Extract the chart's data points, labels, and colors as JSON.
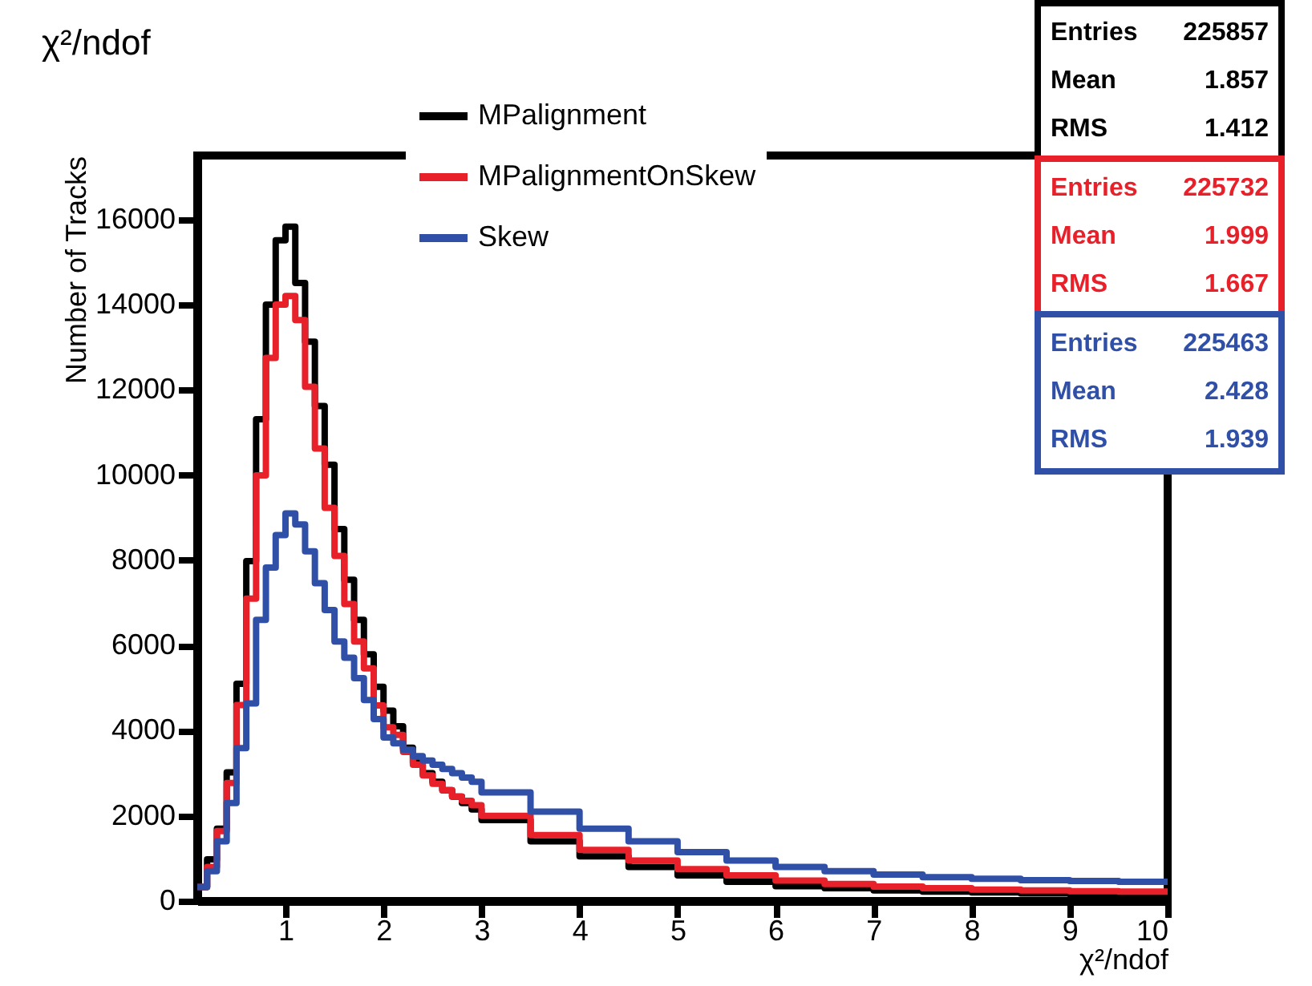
{
  "chart_data": {
    "type": "histogram",
    "title": "χ²/ndof",
    "xlabel": "χ²/ndof",
    "ylabel": "Number of Tracks",
    "bins": [
      0.1,
      0.2,
      0.3,
      0.4,
      0.5,
      0.6,
      0.7,
      0.8,
      0.9,
      1.0,
      1.1,
      1.2,
      1.3,
      1.4,
      1.5,
      1.6,
      1.7,
      1.8,
      1.9,
      2.0,
      2.1,
      2.2,
      2.3,
      2.4,
      2.5,
      2.6,
      2.7,
      2.8,
      2.9,
      3.0,
      3.5,
      4.0,
      4.5,
      5.0,
      5.5,
      6.0,
      6.5,
      7.0,
      7.5,
      8.0,
      8.5,
      9.0,
      9.5,
      10.0
    ],
    "series": [
      {
        "name": "MPalignment",
        "color": "#000000",
        "values": [
          330,
          980,
          1700,
          3020,
          5100,
          7980,
          11310,
          14000,
          15510,
          15830,
          14510,
          13130,
          11620,
          10240,
          8730,
          7540,
          6600,
          5790,
          5030,
          4470,
          4100,
          3600,
          3250,
          3000,
          2800,
          2600,
          2450,
          2300,
          2150,
          1900,
          1400,
          1050,
          800,
          600,
          450,
          350,
          300,
          250,
          220,
          200,
          180,
          160,
          150
        ]
      },
      {
        "name": "MPalignmentOnSkew",
        "color": "#e8202a",
        "values": [
          330,
          800,
          1640,
          2770,
          4600,
          7100,
          9990,
          12750,
          14000,
          14200,
          13640,
          12070,
          10620,
          9230,
          8100,
          6970,
          6090,
          5460,
          4590,
          4080,
          3900,
          3500,
          3200,
          2950,
          2750,
          2600,
          2450,
          2350,
          2250,
          2000,
          1550,
          1200,
          950,
          750,
          600,
          480,
          400,
          340,
          300,
          270,
          250,
          230,
          220
        ]
      },
      {
        "name": "Skew",
        "color": "#3050a8",
        "values": [
          330,
          700,
          1400,
          2300,
          3590,
          4640,
          6600,
          7830,
          8590,
          9100,
          8840,
          8210,
          7460,
          6830,
          6090,
          5710,
          5230,
          4720,
          4270,
          3840,
          3700,
          3550,
          3400,
          3300,
          3200,
          3100,
          3000,
          2900,
          2800,
          2550,
          2100,
          1700,
          1400,
          1150,
          950,
          800,
          700,
          620,
          560,
          520,
          490,
          470,
          450
        ]
      }
    ],
    "xlim": [
      0.1,
      10
    ],
    "xticks": [
      1,
      2,
      3,
      4,
      5,
      6,
      7,
      8,
      9,
      10
    ],
    "ylim": [
      0,
      17500
    ],
    "yticks": [
      0,
      2000,
      4000,
      6000,
      8000,
      10000,
      12000,
      14000,
      16000
    ],
    "legend": "top",
    "annotations": [
      "Entries 225857",
      "Mean 1.857",
      "RMS 1.412",
      "Entries 225732",
      "Mean 1.999",
      "RMS 1.667",
      "Entries 225463",
      "Mean 2.428",
      "RMS 1.939"
    ]
  }
}
